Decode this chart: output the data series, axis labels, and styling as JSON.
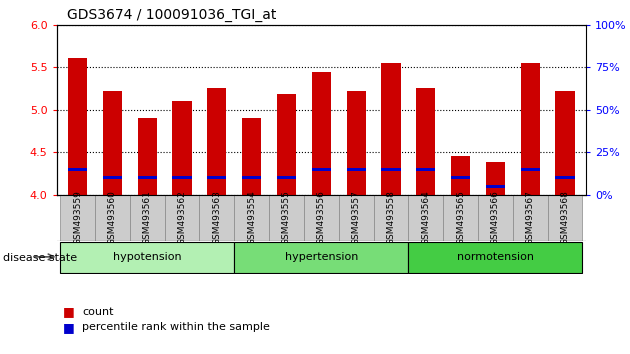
{
  "title": "GDS3674 / 100091036_TGI_at",
  "samples": [
    "GSM493559",
    "GSM493560",
    "GSM493561",
    "GSM493562",
    "GSM493563",
    "GSM493554",
    "GSM493555",
    "GSM493556",
    "GSM493557",
    "GSM493558",
    "GSM493564",
    "GSM493565",
    "GSM493566",
    "GSM493567",
    "GSM493568"
  ],
  "count_values": [
    5.61,
    5.22,
    4.9,
    5.1,
    5.25,
    4.9,
    5.18,
    5.45,
    5.22,
    5.55,
    5.25,
    4.45,
    4.38,
    5.55,
    5.22
  ],
  "percentile_values": [
    15,
    10,
    10,
    10,
    10,
    10,
    10,
    15,
    15,
    15,
    15,
    10,
    5,
    15,
    10
  ],
  "ymin": 4.0,
  "ymax": 6.0,
  "yticks": [
    4.0,
    4.5,
    5.0,
    5.5,
    6.0
  ],
  "right_yticks": [
    0,
    25,
    50,
    75,
    100
  ],
  "groups": [
    {
      "label": "hypotension",
      "start": 0,
      "end": 5,
      "color": "#b3f0b3"
    },
    {
      "label": "hypertension",
      "start": 5,
      "end": 10,
      "color": "#77dd77"
    },
    {
      "label": "normotension",
      "start": 10,
      "end": 15,
      "color": "#44cc44"
    }
  ],
  "bar_color": "#cc0000",
  "percentile_color": "#0000cc",
  "bar_width": 0.55,
  "background_color": "#ffffff",
  "tick_bg_color": "#cccccc",
  "tick_border_color": "#888888"
}
